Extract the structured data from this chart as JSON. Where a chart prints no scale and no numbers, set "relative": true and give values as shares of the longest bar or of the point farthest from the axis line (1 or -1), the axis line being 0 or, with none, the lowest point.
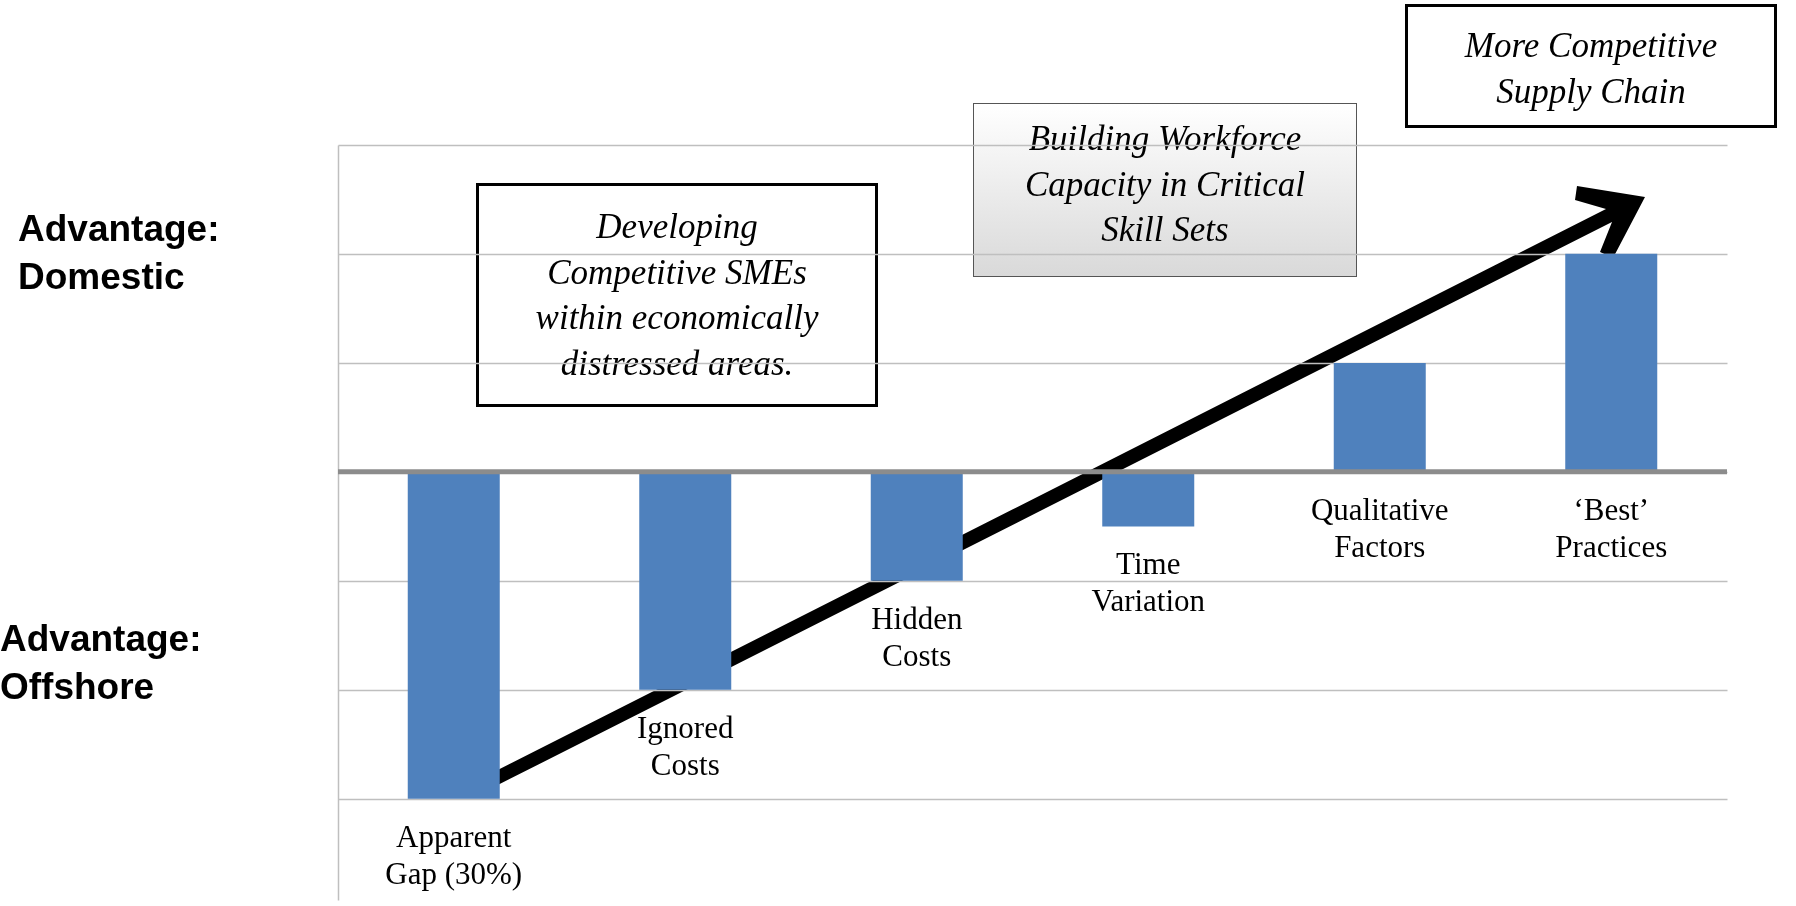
{
  "chart_data": {
    "type": "bar",
    "relative": true,
    "grid": "y",
    "categories": [
      "Apparent Gap (30%)",
      "Ignored Costs",
      "Hidden Costs",
      "Time Variation",
      "Qualitative Factors",
      "‘Best’ Practices"
    ],
    "values": [
      -1,
      -0.667,
      -0.333,
      -0.167,
      0.333,
      0.667
    ],
    "color": "#4f81bd",
    "annotations": [
      "Advantage: Domestic",
      "Advantage: Offshore",
      "Developing Competitive SMEs within economically distressed areas.",
      "Building Workforce Capacity in Critical Skill Sets",
      "More Competitive Supply Chain"
    ]
  }
}
